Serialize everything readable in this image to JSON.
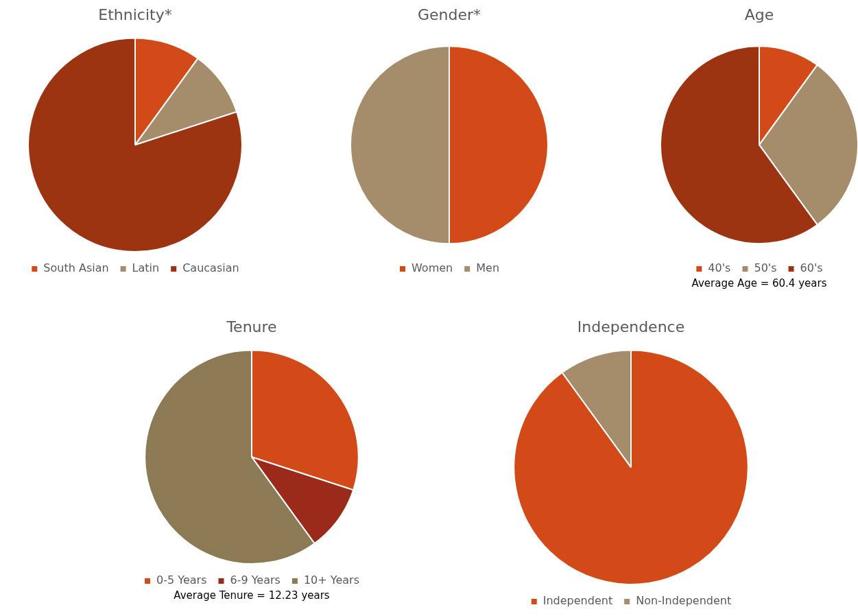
{
  "chart_data": [
    {
      "type": "pie",
      "title": "Ethnicity*",
      "categories": [
        "South Asian",
        "Latin",
        "Caucasian"
      ],
      "values": [
        10,
        10,
        80
      ],
      "colors": [
        "#d24a17",
        "#a58c6a",
        "#9c3412"
      ],
      "legend": "bottom",
      "marker": "square"
    },
    {
      "type": "pie",
      "title": "Gender*",
      "categories": [
        "Women",
        "Men"
      ],
      "values": [
        50,
        50
      ],
      "colors": [
        "#d24a17",
        "#a58c6a"
      ],
      "legend": "bottom",
      "marker": "square"
    },
    {
      "type": "pie",
      "title": "Age",
      "categories": [
        "40's",
        "50's",
        "60's"
      ],
      "values": [
        10,
        30,
        60
      ],
      "colors": [
        "#d24a17",
        "#a58c6a",
        "#9c3412"
      ],
      "legend": "bottom",
      "marker": "square",
      "annotations": [
        "Average Age = 60.4 years"
      ]
    },
    {
      "type": "pie",
      "title": "Tenure",
      "categories": [
        "0-5 Years",
        "6-9 Years",
        "10+ Years"
      ],
      "values": [
        30,
        10,
        60
      ],
      "colors": [
        "#d24a17",
        "#9b2a1a",
        "#8c7a55"
      ],
      "legend": "bottom",
      "marker": "square",
      "annotations": [
        "Average Tenure = 12.23 years"
      ]
    },
    {
      "type": "pie",
      "title": "Independence",
      "categories": [
        "Independent",
        "Non-Independent"
      ],
      "values": [
        90,
        10
      ],
      "colors": [
        "#d24a17",
        "#a58c6a"
      ],
      "legend": "bottom",
      "marker": "square"
    }
  ]
}
